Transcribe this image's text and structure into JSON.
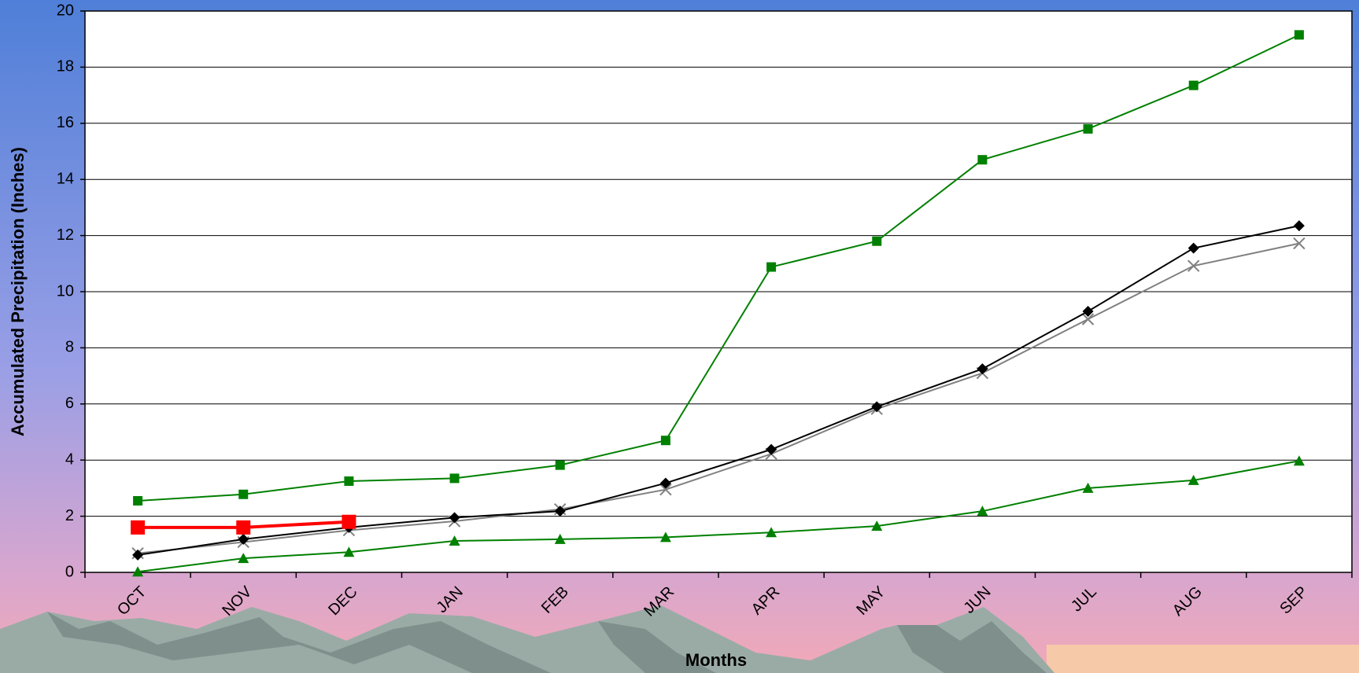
{
  "chart_data": {
    "type": "line",
    "x_label": "Months",
    "y_label": "Accumulated Precipitation (Inches)",
    "categories": [
      "OCT",
      "NOV",
      "DEC",
      "JAN",
      "FEB",
      "MAR",
      "APR",
      "MAY",
      "JUN",
      "JUL",
      "AUG",
      "SEP"
    ],
    "ylim": [
      0,
      20
    ],
    "yticks": [
      0,
      2,
      4,
      6,
      8,
      10,
      12,
      14,
      16,
      18,
      20
    ],
    "grid": true,
    "series": [
      {
        "color": "#008000",
        "marker": "square",
        "line_width": 2,
        "values": [
          2.55,
          2.78,
          3.25,
          3.35,
          3.82,
          4.7,
          10.88,
          11.8,
          14.7,
          15.8,
          17.35,
          19.15
        ]
      },
      {
        "color": "#808080",
        "marker": "x",
        "line_width": 2,
        "values": [
          0.68,
          1.08,
          1.5,
          1.82,
          2.25,
          2.95,
          4.22,
          5.82,
          7.1,
          9.02,
          10.92,
          11.72
        ]
      },
      {
        "color": "#000000",
        "marker": "diamond",
        "line_width": 2,
        "values": [
          0.62,
          1.18,
          1.6,
          1.95,
          2.18,
          3.18,
          4.38,
          5.9,
          7.25,
          9.3,
          11.55,
          12.35
        ]
      },
      {
        "color": "#008000",
        "marker": "triangle",
        "line_width": 2,
        "values": [
          0.02,
          0.5,
          0.72,
          1.12,
          1.18,
          1.25,
          1.42,
          1.65,
          2.18,
          3.0,
          3.28,
          3.97
        ]
      },
      {
        "color": "#ff0000",
        "marker": "square",
        "line_width": 4,
        "values": [
          1.6,
          1.6,
          1.8,
          null,
          null,
          null,
          null,
          null,
          null,
          null,
          null,
          null
        ]
      }
    ]
  }
}
